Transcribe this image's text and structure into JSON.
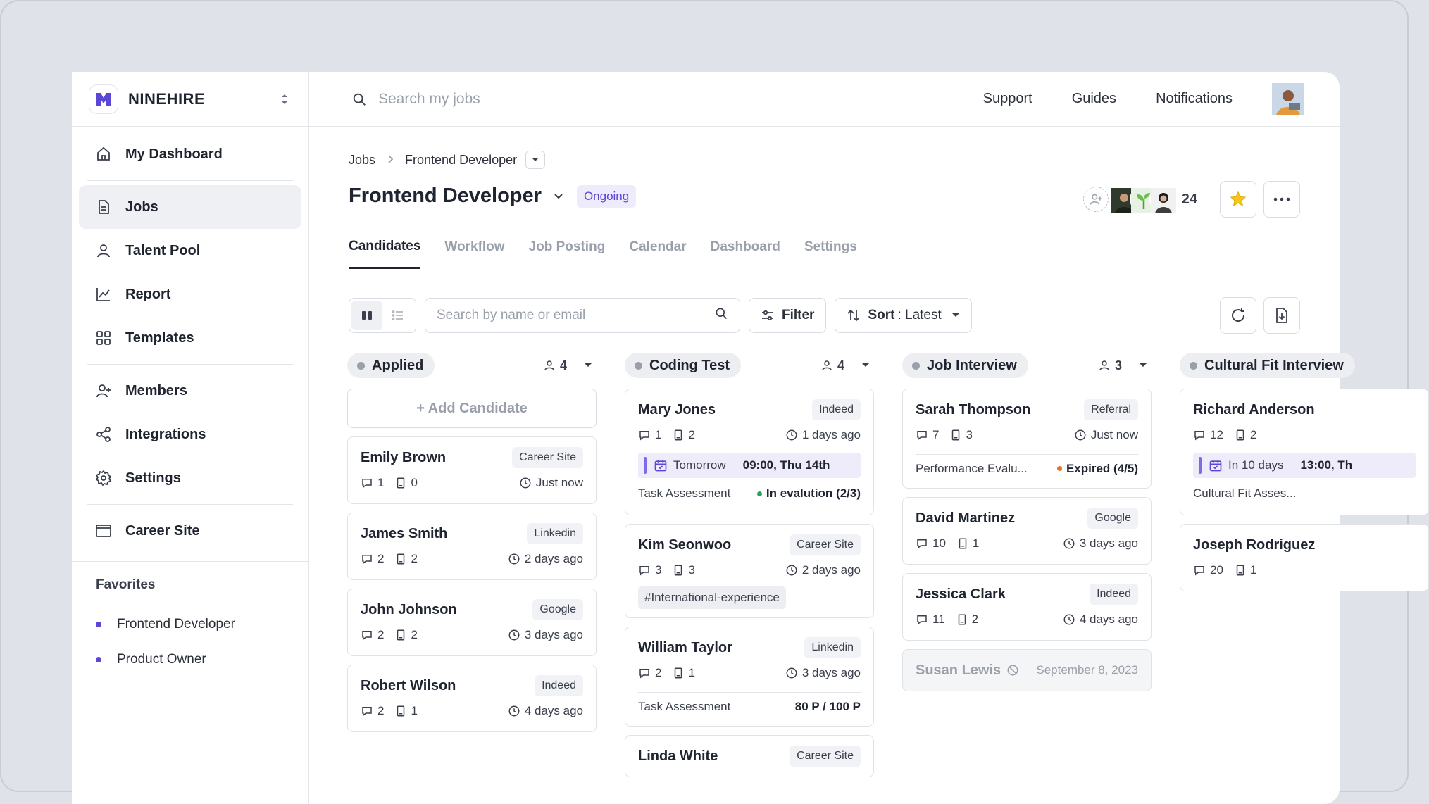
{
  "brand": {
    "name": "NINEHIRE"
  },
  "sidebar": {
    "items": [
      {
        "label": "My Dashboard",
        "icon": "home-icon"
      },
      {
        "label": "Jobs",
        "icon": "document-icon"
      },
      {
        "label": "Talent Pool",
        "icon": "user-icon"
      },
      {
        "label": "Report",
        "icon": "chart-icon"
      },
      {
        "label": "Templates",
        "icon": "grid-icon"
      },
      {
        "label": "Members",
        "icon": "user-plus-icon"
      },
      {
        "label": "Integrations",
        "icon": "share-icon"
      },
      {
        "label": "Settings",
        "icon": "gear-icon"
      },
      {
        "label": "Career Site",
        "icon": "window-icon"
      }
    ],
    "active": "Jobs",
    "favorites_title": "Favorites",
    "favorites": [
      "Frontend Developer",
      "Product Owner"
    ]
  },
  "topbar": {
    "search_placeholder": "Search my jobs",
    "links": [
      "Support",
      "Guides",
      "Notifications"
    ]
  },
  "breadcrumb": {
    "root": "Jobs",
    "current": "Frontend Developer"
  },
  "job": {
    "title": "Frontend Developer",
    "status": "Ongoing",
    "team_count": "24"
  },
  "tabs": [
    "Candidates",
    "Workflow",
    "Job Posting",
    "Calendar",
    "Dashboard",
    "Settings"
  ],
  "active_tab": "Candidates",
  "toolbar": {
    "search_placeholder": "Search by name or email",
    "filter_label": "Filter",
    "sort_label": "Sort",
    "sort_value": ": Latest"
  },
  "colors": {
    "accent": "#5b47d6",
    "accent_soft": "#eeebfb",
    "green": "#27a35a",
    "orange": "#e8742c"
  },
  "columns": [
    {
      "name": "Applied",
      "count": "4",
      "add_label": "+ Add Candidate",
      "cards": [
        {
          "name": "Emily Brown",
          "source": "Career Site",
          "comments": "1",
          "files": "0",
          "time": "Just now"
        },
        {
          "name": "James Smith",
          "source": "Linkedin",
          "comments": "2",
          "files": "2",
          "time": "2 days ago"
        },
        {
          "name": "John Johnson",
          "source": "Google",
          "comments": "2",
          "files": "2",
          "time": "3 days ago"
        },
        {
          "name": "Robert Wilson",
          "source": "Indeed",
          "comments": "2",
          "files": "1",
          "time": "4 days ago"
        }
      ]
    },
    {
      "name": "Coding Test",
      "count": "4",
      "cards": [
        {
          "name": "Mary Jones",
          "source": "Indeed",
          "comments": "1",
          "files": "2",
          "time": "1 days ago",
          "schedule": {
            "day": "Tomorrow",
            "when": "09:00, Thu 14th"
          },
          "assessment": {
            "label": "Task Assessment",
            "status": "In evalution (2/3)"
          }
        },
        {
          "name": "Kim Seonwoo",
          "source": "Career Site",
          "comments": "3",
          "files": "3",
          "time": "2 days ago",
          "tag": "#International-experience"
        },
        {
          "name": "William Taylor",
          "source": "Linkedin",
          "comments": "2",
          "files": "1",
          "time": "3 days ago",
          "score": {
            "label": "Task Assessment",
            "value": "80 P / 100 P"
          }
        },
        {
          "name": "Linda White",
          "source": "Career Site"
        }
      ]
    },
    {
      "name": "Job Interview",
      "count": "3",
      "cards": [
        {
          "name": "Sarah Thompson",
          "source": "Referral",
          "comments": "7",
          "files": "3",
          "time": "Just now",
          "evaluation": {
            "label": "Performance Evalu...",
            "status": "Expired (4/5)"
          }
        },
        {
          "name": "David Martinez",
          "source": "Google",
          "comments": "10",
          "files": "1",
          "time": "3 days ago"
        },
        {
          "name": "Jessica Clark",
          "source": "Indeed",
          "comments": "11",
          "files": "2",
          "time": "4 days ago"
        }
      ],
      "rejected": {
        "name": "Susan Lewis",
        "date": "September 8, 2023"
      }
    },
    {
      "name": "Cultural Fit Interview",
      "cards": [
        {
          "name": "Richard Anderson",
          "comments": "12",
          "files": "2",
          "schedule": {
            "day": "In 10 days",
            "when": "13:00, Th"
          },
          "assessment_label": "Cultural Fit Asses..."
        },
        {
          "name": "Joseph Rodriguez",
          "comments": "20",
          "files": "1"
        }
      ]
    }
  ]
}
